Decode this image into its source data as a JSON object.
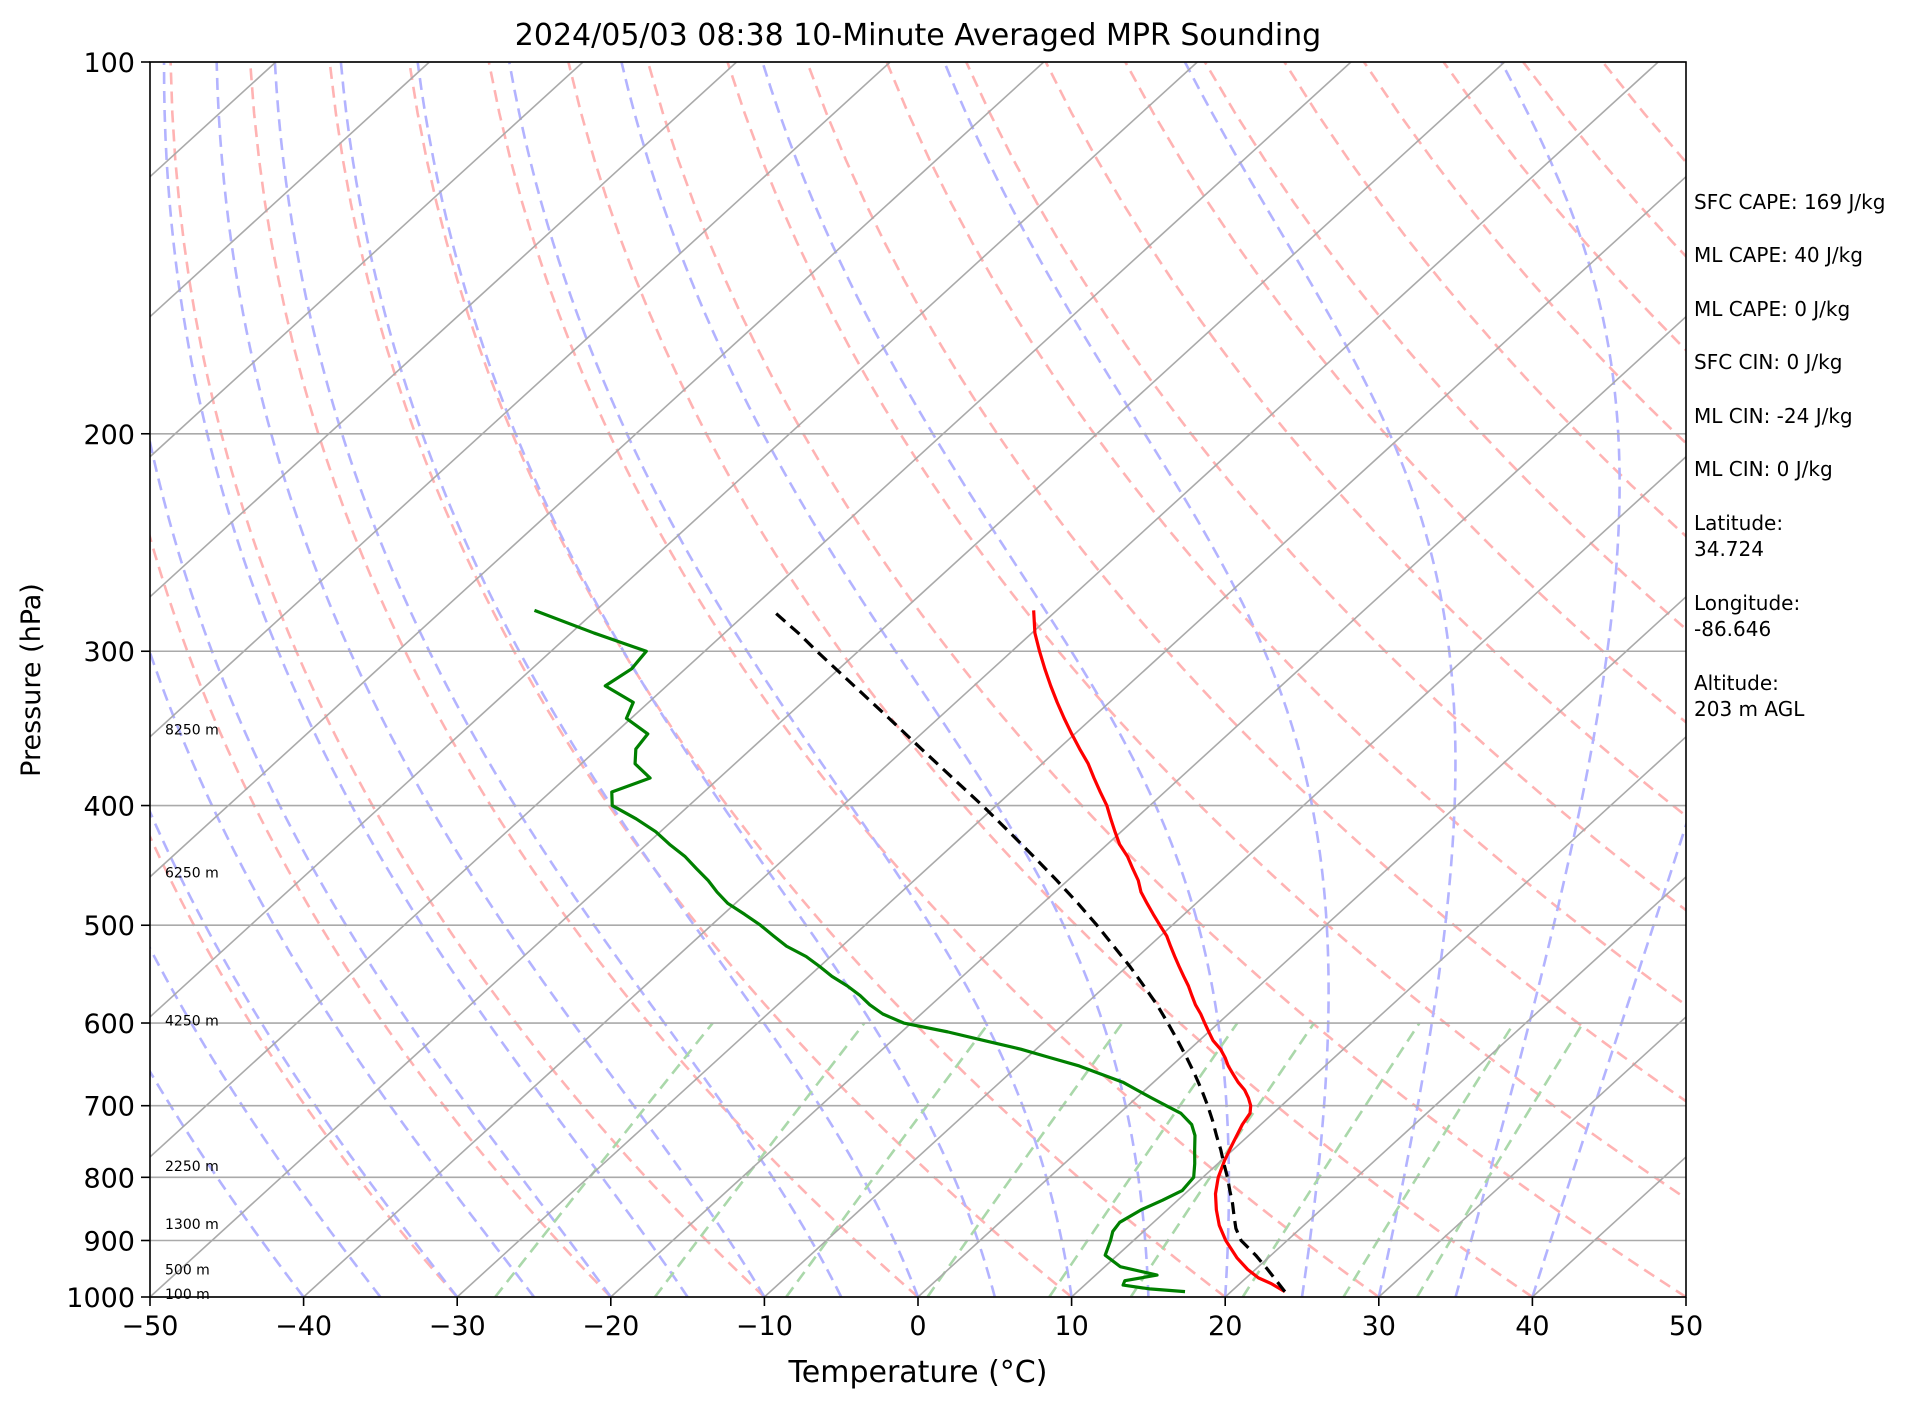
{
  "chart_data": {
    "type": "line",
    "subtype": "skew-t log-p sounding",
    "title": "2024/05/03 08:38 10-Minute Averaged MPR Sounding",
    "xlabel": "Temperature (°C)",
    "ylabel": "Pressure (hPa)",
    "xlim": [
      -50,
      50
    ],
    "ylim": [
      1000,
      100
    ],
    "y_scale": "log",
    "x_ticks": [
      "−50",
      "−40",
      "−30",
      "−20",
      "−10",
      "0",
      "10",
      "20",
      "30",
      "40",
      "50"
    ],
    "y_ticks": [
      "100",
      "200",
      "300",
      "400",
      "500",
      "600",
      "700",
      "800",
      "900",
      "1000"
    ],
    "height_labels": [
      {
        "text": "8250 m",
        "p": 347
      },
      {
        "text": "6250 m",
        "p": 453
      },
      {
        "text": "4250 m",
        "p": 597
      },
      {
        "text": "2250 m",
        "p": 783
      },
      {
        "text": "1300 m",
        "p": 873
      },
      {
        "text": "500 m",
        "p": 950
      },
      {
        "text": "100 m",
        "p": 994
      }
    ],
    "series": [
      {
        "role": "temperature",
        "color": "#ff0000",
        "pressure": [
          990,
          975,
          965,
          950,
          930,
          900,
          875,
          850,
          825,
          800,
          775,
          750,
          725,
          710,
          700,
          690,
          680,
          670,
          660,
          650,
          640,
          630,
          620,
          610,
          600,
          590,
          580,
          570,
          560,
          550,
          540,
          530,
          520,
          510,
          500,
          490,
          480,
          470,
          460,
          450,
          440,
          430,
          420,
          410,
          400,
          390,
          380,
          370,
          360,
          350,
          340,
          330,
          320,
          310,
          300,
          290,
          278
        ],
        "temperature": [
          23.5,
          22.0,
          20.8,
          19.5,
          18.0,
          16.0,
          14.5,
          13.2,
          12.0,
          11.0,
          10.2,
          9.5,
          8.8,
          8.5,
          8.0,
          7.3,
          6.5,
          5.5,
          4.6,
          3.7,
          2.9,
          2.0,
          0.9,
          0.0,
          -0.9,
          -1.8,
          -2.8,
          -3.7,
          -4.6,
          -5.6,
          -6.6,
          -7.6,
          -8.6,
          -9.6,
          -10.8,
          -12.0,
          -13.2,
          -14.4,
          -15.4,
          -16.6,
          -17.8,
          -19.2,
          -20.4,
          -21.6,
          -22.8,
          -24.2,
          -25.6,
          -27.0,
          -28.6,
          -30.2,
          -31.8,
          -33.4,
          -35.0,
          -36.6,
          -38.2,
          -39.8,
          -41.5
        ]
      },
      {
        "role": "dewpoint",
        "color": "#008000",
        "pressure": [
          990,
          985,
          978,
          970,
          960,
          945,
          925,
          900,
          885,
          870,
          850,
          835,
          820,
          800,
          780,
          760,
          740,
          725,
          710,
          700,
          690,
          680,
          670,
          660,
          650,
          640,
          630,
          620,
          610,
          600,
          590,
          580,
          570,
          560,
          550,
          540,
          530,
          520,
          510,
          500,
          490,
          480,
          470,
          460,
          450,
          440,
          430,
          420,
          410,
          400,
          390,
          380,
          370,
          360,
          350,
          340,
          330,
          320,
          310,
          300,
          290,
          278
        ],
        "dewpoint": [
          17.0,
          14.5,
          12.5,
          12.3,
          14.0,
          11.0,
          9.2,
          8.5,
          8.0,
          7.8,
          8.3,
          9.0,
          9.6,
          9.4,
          8.5,
          7.5,
          6.5,
          5.5,
          4.0,
          2.5,
          1.0,
          -0.5,
          -2.0,
          -4.0,
          -6.0,
          -8.5,
          -11.0,
          -14.0,
          -17.0,
          -20.5,
          -22.5,
          -24.0,
          -25.3,
          -26.8,
          -28.5,
          -30.0,
          -31.6,
          -33.6,
          -35.2,
          -36.8,
          -38.6,
          -40.5,
          -42.0,
          -43.4,
          -45.0,
          -46.6,
          -48.5,
          -50.3,
          -52.5,
          -55.0,
          -56.0,
          -54.5,
          -56.5,
          -57.5,
          -57.8,
          -60.3,
          -61.0,
          -64.0,
          -63.5,
          -63.8,
          -68.5,
          -74.0
        ]
      },
      {
        "role": "parcel profile",
        "color": "#000000",
        "style": "dashed",
        "pressure": [
          990,
          950,
          925,
          900,
          880,
          860,
          840,
          820,
          800,
          780,
          760,
          740,
          720,
          700,
          680,
          660,
          640,
          620,
          600,
          580,
          560,
          540,
          520,
          500,
          480,
          460,
          440,
          420,
          400,
          380,
          360,
          340,
          320,
          300,
          290,
          278
        ],
        "temperature": [
          23.5,
          20.8,
          19.0,
          17.0,
          15.8,
          14.8,
          13.8,
          12.7,
          11.6,
          10.4,
          9.2,
          7.9,
          6.6,
          5.2,
          3.7,
          2.1,
          0.4,
          -1.4,
          -3.3,
          -5.3,
          -7.5,
          -9.8,
          -12.3,
          -14.9,
          -17.7,
          -20.7,
          -23.9,
          -27.3,
          -30.9,
          -34.8,
          -38.9,
          -43.2,
          -47.8,
          -52.7,
          -55.2,
          -58.5
        ]
      }
    ]
  },
  "indices": {
    "sfc_cape": "SFC CAPE: 169 J/kg",
    "ml_cape": "ML CAPE: 40 J/kg",
    "mu_cape": "ML CAPE: 0 J/kg",
    "sfc_cin": "SFC CIN: 0 J/kg",
    "ml_cin": "ML CIN: -24 J/kg",
    "mu_cin": "ML CIN: 0 J/kg"
  },
  "location": {
    "lat_label": "Latitude:",
    "lat_value": "34.724",
    "lon_label": "Longitude:",
    "lon_value": "-86.646",
    "alt_label": "Altitude:",
    "alt_value": "203 m AGL"
  },
  "colors": {
    "temperature": "#ff0000",
    "dewpoint": "#008000",
    "parcel": "#000000",
    "isotherms": "#aaaaaa",
    "dry_adiabats": "#ffb3b3",
    "moist_adiabats": "#b3b3ff",
    "mixing_ratio": "#aad8aa"
  }
}
